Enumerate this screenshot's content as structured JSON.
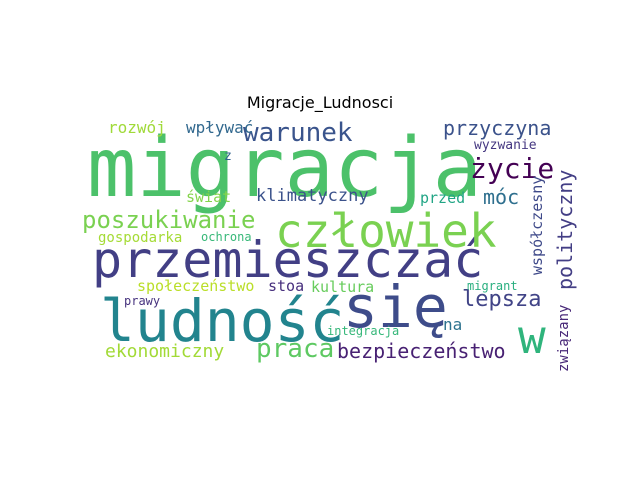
{
  "title": "Migracje_Ludnosci",
  "words": [
    {
      "text": "migracja",
      "color": "#4cc16a"
    },
    {
      "text": "przemieszczać",
      "color": "#423f85"
    },
    {
      "text": "ludność",
      "color": "#22848e"
    },
    {
      "text": "się",
      "color": "#3e4c8a"
    },
    {
      "text": "człowiek",
      "color": "#7ad151"
    },
    {
      "text": "w",
      "color": "#2fb47c"
    },
    {
      "text": "poszukiwanie",
      "color": "#7ad151"
    },
    {
      "text": "warunek",
      "color": "#3a548c"
    },
    {
      "text": "praca",
      "color": "#5ec962"
    },
    {
      "text": "lepsza",
      "color": "#414487"
    },
    {
      "text": "bezpieczeństwo",
      "color": "#482173"
    },
    {
      "text": "ekonomiczny",
      "color": "#a2da37"
    },
    {
      "text": "życie",
      "color": "#440154"
    },
    {
      "text": "przyczyna",
      "color": "#3b528b"
    },
    {
      "text": "móc",
      "color": "#2e6f8e"
    },
    {
      "text": "klimatyczny",
      "color": "#3b528b"
    },
    {
      "text": "polityczny",
      "color": "#433e85"
    },
    {
      "text": "związany",
      "color": "#482878"
    },
    {
      "text": "współczesny",
      "color": "#3e4989"
    },
    {
      "text": "rozwój",
      "color": "#a0da39"
    },
    {
      "text": "wpływać",
      "color": "#31688e"
    },
    {
      "text": "świat",
      "color": "#84d44b"
    },
    {
      "text": "przed",
      "color": "#21a585"
    },
    {
      "text": "na",
      "color": "#2c728e"
    },
    {
      "text": "gospodarka",
      "color": "#a5db36"
    },
    {
      "text": "ochrona",
      "color": "#37b878"
    },
    {
      "text": "społeczeństwo",
      "color": "#bade28"
    },
    {
      "text": "stoa",
      "color": "#472f7d"
    },
    {
      "text": "kultura",
      "color": "#67cc5c"
    },
    {
      "text": "migrant",
      "color": "#29af7f"
    },
    {
      "text": "integracja",
      "color": "#35b779"
    },
    {
      "text": "prawy",
      "color": "#46327e"
    },
    {
      "text": "wyzwanie",
      "color": "#453781"
    },
    {
      "text": "z",
      "color": "#33638d"
    }
  ]
}
